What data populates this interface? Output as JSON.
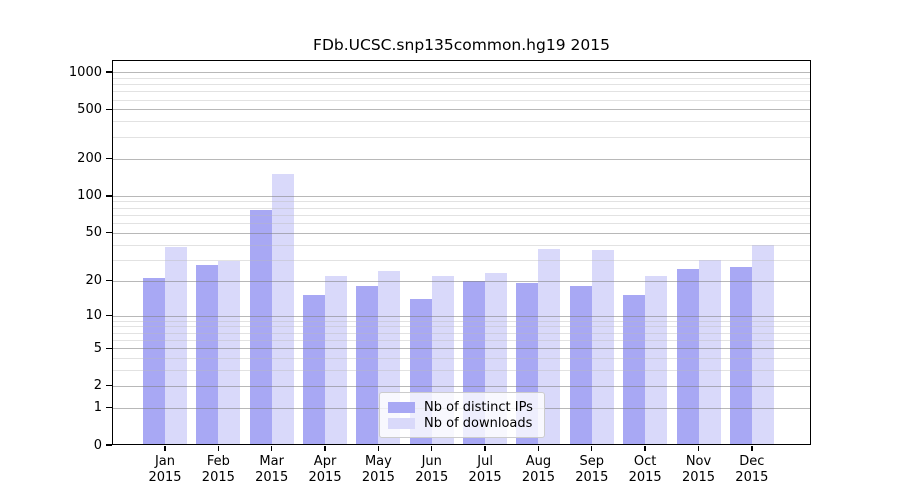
{
  "title": "FDb.UCSC.snp135common.hg19 2015",
  "colors": {
    "distinct_ips_bar": "#a8a8f4",
    "downloads_bar": "#d9d9fa",
    "major_gridline": "rgba(125,125,125,0.55)",
    "minor_gridline": "rgba(185,185,185,0.42)",
    "axis": "#000000",
    "legend_border": "#cccccc"
  },
  "legend": {
    "items": [
      {
        "label": "Nb of distinct IPs",
        "color_key": "distinct_ips_bar"
      },
      {
        "label": "Nb of downloads",
        "color_key": "downloads_bar"
      }
    ],
    "position": "lower-center"
  },
  "chart_data": {
    "type": "bar",
    "title": "FDb.UCSC.snp135common.hg19 2015",
    "categories": [
      "Jan",
      "Feb",
      "Mar",
      "Apr",
      "May",
      "Jun",
      "Jul",
      "Aug",
      "Sep",
      "Oct",
      "Nov",
      "Dec"
    ],
    "category_year": "2015",
    "series": [
      {
        "name": "Nb of distinct IPs",
        "values": [
          21,
          27,
          76,
          15,
          18,
          14,
          20,
          19,
          18,
          15,
          25,
          26
        ]
      },
      {
        "name": "Nb of downloads",
        "values": [
          38,
          29,
          150,
          22,
          24,
          22,
          23,
          37,
          36,
          22,
          30,
          40
        ]
      }
    ],
    "xlabel": "",
    "ylabel": "",
    "y_scale": "log10(1+value)",
    "y_ticks": [
      0,
      1,
      2,
      5,
      10,
      20,
      50,
      100,
      200,
      500,
      1000
    ],
    "y_minor_gridlines": [
      3,
      4,
      6,
      7,
      8,
      9,
      30,
      40,
      60,
      70,
      80,
      90,
      300,
      400,
      600,
      700,
      800,
      900
    ],
    "ylim": [
      0,
      1300
    ],
    "grid": "on",
    "legend_position": "lower center"
  }
}
